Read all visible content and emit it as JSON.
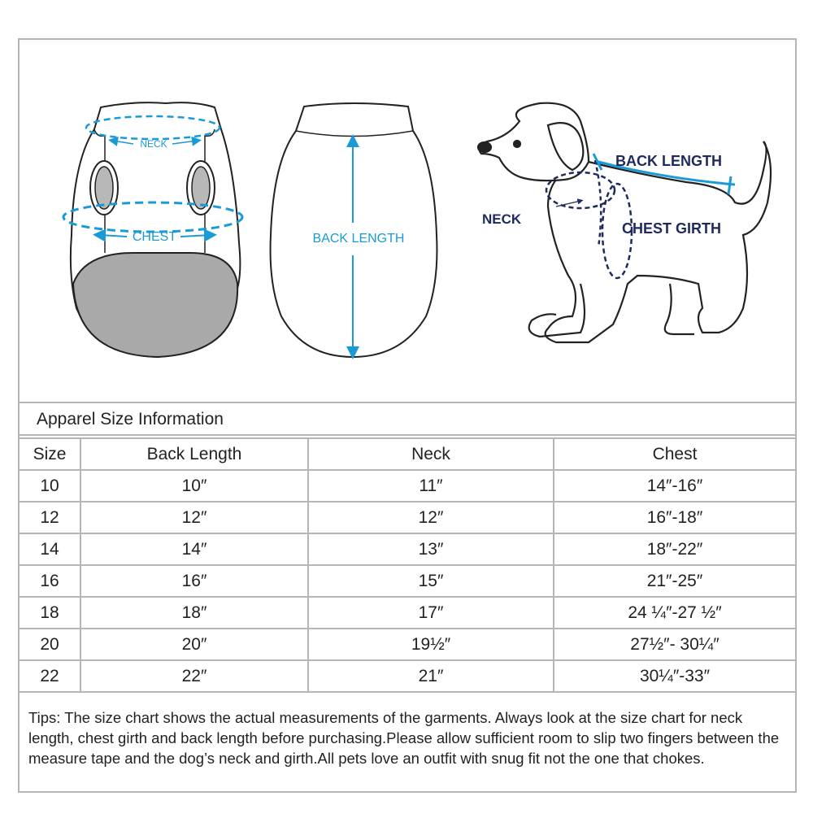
{
  "diagram": {
    "neck_label": "NECK",
    "chest_label": "CHEST",
    "back_length_label": "BACK LENGTH",
    "dog_back_length_label": "BACK LENGTH",
    "dog_neck_label": "NECK",
    "dog_chest_girth_label": "CHEST GIRTH",
    "colors": {
      "garment_label": "#1a9ad6",
      "dog_label": "#1e2a5e",
      "fill_gray": "#a9a9a9"
    }
  },
  "table": {
    "title": "Apparel Size Information",
    "headers": [
      "Size",
      "Back Length",
      "Neck",
      "Chest"
    ],
    "rows": [
      [
        "10",
        "10″",
        "11″",
        "14″-16″"
      ],
      [
        "12",
        "12″",
        "12″",
        "16″-18″"
      ],
      [
        "14",
        "14″",
        "13″",
        "18″-22″"
      ],
      [
        "16",
        "16″",
        "15″",
        "21″-25″"
      ],
      [
        "18",
        "18″",
        "17″",
        "24 ¼″-27 ½″"
      ],
      [
        "20",
        "20″",
        "19½″",
        "27½″- 30¼″"
      ],
      [
        "22",
        "22″",
        "21″",
        "30¼″-33″"
      ]
    ]
  },
  "tips": "Tips:  The size chart shows the actual measurements of the  garments.  Always look at the size chart for neck length, chest girth and back length before purchasing.Please allow sufficient room to slip two fingers between the measure tape and the dog’s neck and girth.All pets love an outfit with snug fit not the one that chokes."
}
